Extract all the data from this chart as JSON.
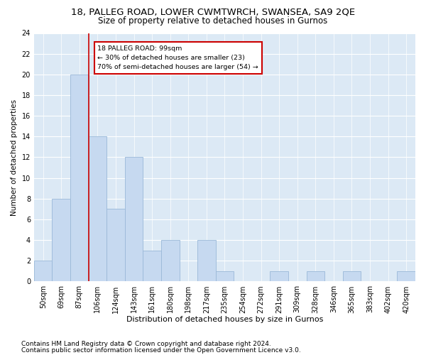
{
  "title_line1": "18, PALLEG ROAD, LOWER CWMTWRCH, SWANSEA, SA9 2QE",
  "title_line2": "Size of property relative to detached houses in Gurnos",
  "xlabel": "Distribution of detached houses by size in Gurnos",
  "ylabel": "Number of detached properties",
  "annotation_line1": "18 PALLEG ROAD: 99sqm",
  "annotation_line2": "← 30% of detached houses are smaller (23)",
  "annotation_line3": "70% of semi-detached houses are larger (54) →",
  "footer_line1": "Contains HM Land Registry data © Crown copyright and database right 2024.",
  "footer_line2": "Contains public sector information licensed under the Open Government Licence v3.0.",
  "bar_labels": [
    "50sqm",
    "69sqm",
    "87sqm",
    "106sqm",
    "124sqm",
    "143sqm",
    "161sqm",
    "180sqm",
    "198sqm",
    "217sqm",
    "235sqm",
    "254sqm",
    "272sqm",
    "291sqm",
    "309sqm",
    "328sqm",
    "346sqm",
    "365sqm",
    "383sqm",
    "402sqm",
    "420sqm"
  ],
  "bar_values": [
    2,
    8,
    20,
    14,
    7,
    12,
    3,
    4,
    0,
    4,
    1,
    0,
    0,
    1,
    0,
    1,
    0,
    1,
    0,
    0,
    1
  ],
  "bar_color": "#c6d9f0",
  "bar_edge_color": "#9ab8d8",
  "vline_x": 2.5,
  "vline_color": "#cc0000",
  "annotation_box_color": "#cc0000",
  "annotation_box_fill": "#ffffff",
  "ylim": [
    0,
    24
  ],
  "yticks": [
    0,
    2,
    4,
    6,
    8,
    10,
    12,
    14,
    16,
    18,
    20,
    22,
    24
  ],
  "background_color": "#dce9f5",
  "grid_color": "#ffffff",
  "title1_fontsize": 9.5,
  "title2_fontsize": 8.5,
  "xlabel_fontsize": 8,
  "ylabel_fontsize": 7.5,
  "tick_fontsize": 7,
  "footer_fontsize": 6.5
}
